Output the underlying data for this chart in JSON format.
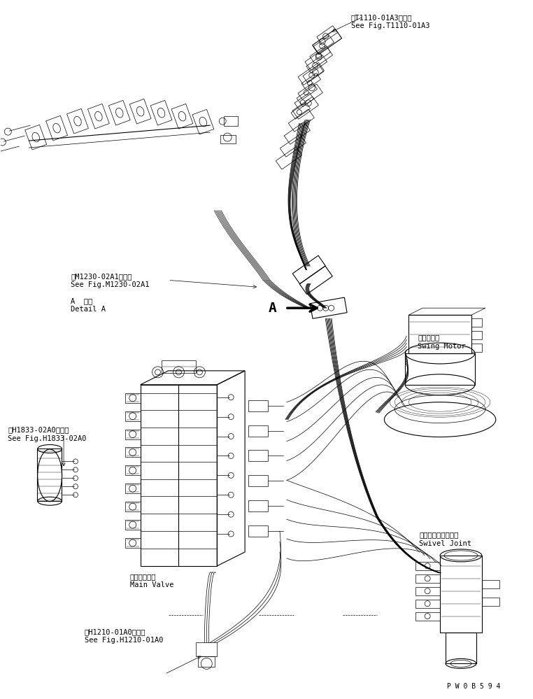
{
  "background_color": "#ffffff",
  "figsize": [
    7.62,
    9.99
  ],
  "dpi": 100,
  "labels": {
    "t1110": [
      "第T1110-01A3図参照",
      "See Fig.T1110-01A3"
    ],
    "swing": [
      "旋回モータ",
      "Swing Motor"
    ],
    "swivel": [
      "スイベルジョイント",
      "Swivel Joint"
    ],
    "h1833": [
      "第H1833-02A0図参照",
      "See Fig.H1833-02A0"
    ],
    "m1230": [
      "第M1230-02A1図参照",
      "See Fig.M1230-02A1"
    ],
    "detail_a": [
      "A  詳細",
      "Detail A"
    ],
    "main_valve": [
      "メインバルブ",
      "Main Valve"
    ],
    "h1210": [
      "第H1210-01A0図参照",
      "See Fig.H1210-01A0"
    ],
    "code": "P W 0 B 5 9 4"
  }
}
